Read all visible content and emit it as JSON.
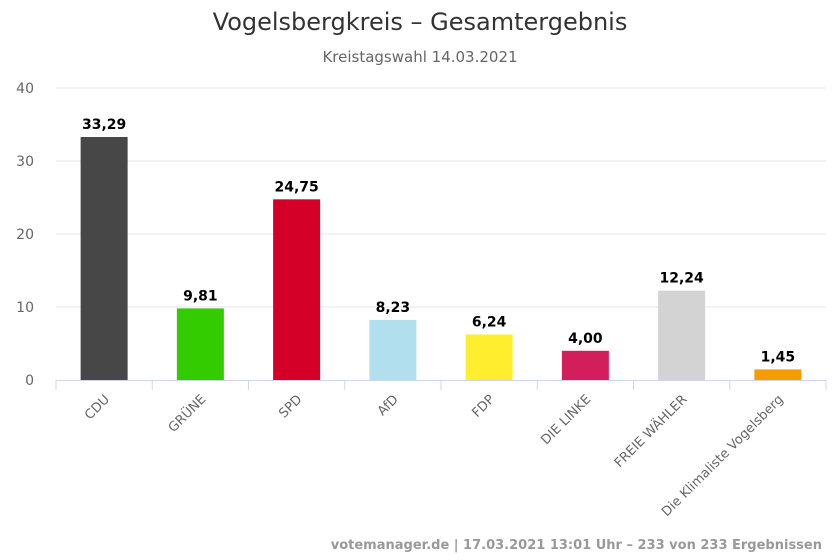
{
  "chart_data": {
    "type": "bar",
    "title": "Vogelsbergkreis – Gesamtergebnis",
    "subtitle": "Kreistagswahl 14.03.2021",
    "categories": [
      "CDU",
      "GRÜNE",
      "SPD",
      "AfD",
      "FDP",
      "DIE LINKE",
      "FREIE WÄHLER",
      "Die Klimaliste Vogelsberg"
    ],
    "values": [
      33.29,
      9.81,
      24.75,
      8.23,
      6.24,
      4.0,
      12.24,
      1.45
    ],
    "value_labels": [
      "33,29",
      "9,81",
      "24,75",
      "8,23",
      "6,24",
      "4,00",
      "12,24",
      "1,45"
    ],
    "colors": [
      "#474747",
      "#33cc00",
      "#d50028",
      "#b2dfee",
      "#ffed2e",
      "#d21e5a",
      "#d3d3d3",
      "#f59d00"
    ],
    "yticks": [
      0,
      10,
      20,
      30,
      40
    ],
    "ylim": [
      0,
      40
    ],
    "grid": true,
    "legend": "none"
  },
  "credits": "votemanager.de | 17.03.2021 13:01 Uhr – 233 von 233 Ergebnissen"
}
